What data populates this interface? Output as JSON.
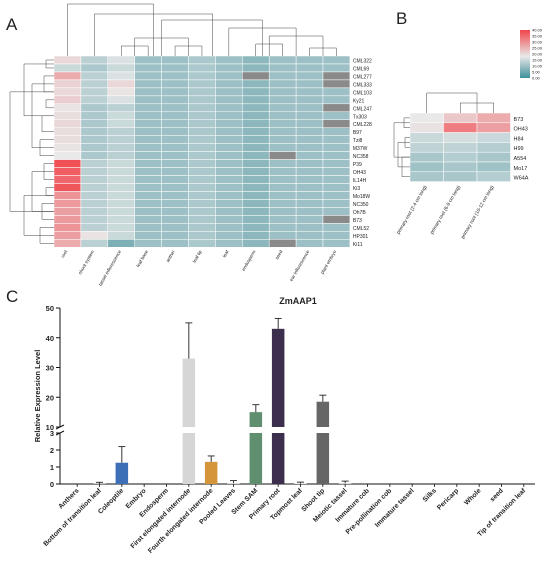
{
  "panels": {
    "a": "A",
    "b": "B",
    "c": "C"
  },
  "colors": {
    "heat_low": "#3f8f99",
    "heat_mid": "#e9e9e9",
    "heat_high": "#f0454b",
    "na": "#8a8a8a",
    "grid": "#ffffff",
    "bar_gray": "#d6d6d6",
    "bar_blue": "#3d6fb6",
    "bar_orange": "#d5953a",
    "bar_green": "#5f8f6e",
    "bar_dark": "#3b2f4d",
    "bar_mid": "#666666",
    "error": "#222222"
  },
  "chart_data": [
    {
      "type": "heatmap",
      "title": "",
      "columns": [
        "root",
        "shoot system",
        "tassel inflorescence",
        "leaf base",
        "anther",
        "leaf tip",
        "leaf",
        "endosperm",
        "seed",
        "ear inflorescence",
        "plant embryo"
      ],
      "rows": [
        "CML322",
        "CML69",
        "CML277",
        "CML333",
        "CML103",
        "Ky21",
        "CML247",
        "Tx303",
        "CML228",
        "B97",
        "Tzi8",
        "M37W",
        "NC358",
        "P39",
        "OH43",
        "IL14H",
        "Ki3",
        "Mo18W",
        "NC350",
        "Oh7B",
        "B73",
        "CML52",
        "HP301",
        "Ki11"
      ],
      "values": [
        [
          14,
          8,
          10,
          6,
          6,
          7,
          6,
          5,
          6,
          6,
          6
        ],
        [
          9,
          7,
          9,
          6,
          6,
          7,
          6,
          5,
          6,
          6,
          6
        ],
        [
          22,
          8,
          10,
          6,
          6,
          7,
          6,
          null,
          6,
          6,
          null
        ],
        [
          15,
          8,
          14,
          6,
          6,
          7,
          6,
          5,
          6,
          6,
          null
        ],
        [
          14,
          8,
          12,
          6,
          6,
          7,
          6,
          5,
          6,
          6,
          6
        ],
        [
          16,
          8,
          10,
          6,
          6,
          7,
          6,
          5,
          6,
          6,
          6
        ],
        [
          12,
          7,
          8,
          6,
          6,
          7,
          6,
          5,
          6,
          6,
          null
        ],
        [
          13,
          7,
          9,
          6,
          6,
          7,
          6,
          5,
          6,
          6,
          6
        ],
        [
          14,
          7,
          9,
          6,
          6,
          7,
          6,
          5,
          6,
          6,
          null
        ],
        [
          13,
          7,
          8,
          6,
          6,
          7,
          6,
          5,
          6,
          6,
          6
        ],
        [
          13,
          7,
          8,
          6,
          6,
          7,
          6,
          5,
          6,
          6,
          6
        ],
        [
          12,
          7,
          8,
          6,
          6,
          7,
          6,
          5,
          6,
          6,
          6
        ],
        [
          11,
          7,
          8,
          6,
          6,
          7,
          6,
          5,
          null,
          6,
          6
        ],
        [
          38,
          8,
          9,
          6,
          6,
          7,
          6,
          5,
          6,
          6,
          6
        ],
        [
          36,
          8,
          9,
          6,
          6,
          7,
          6,
          5,
          6,
          6,
          6
        ],
        [
          34,
          8,
          9,
          6,
          6,
          7,
          6,
          5,
          6,
          6,
          6
        ],
        [
          37,
          8,
          9,
          6,
          6,
          7,
          6,
          5,
          6,
          6,
          6
        ],
        [
          26,
          8,
          9,
          6,
          6,
          7,
          6,
          5,
          6,
          6,
          6
        ],
        [
          25,
          8,
          9,
          6,
          6,
          7,
          6,
          5,
          6,
          6,
          6
        ],
        [
          24,
          8,
          9,
          6,
          6,
          7,
          6,
          5,
          6,
          6,
          6
        ],
        [
          25,
          8,
          9,
          6,
          6,
          7,
          6,
          5,
          6,
          6,
          null
        ],
        [
          26,
          8,
          9,
          6,
          6,
          7,
          6,
          5,
          6,
          6,
          6
        ],
        [
          24,
          12,
          9,
          6,
          6,
          7,
          6,
          5,
          6,
          6,
          6
        ],
        [
          22,
          8,
          4,
          6,
          6,
          7,
          6,
          5,
          null,
          6,
          6
        ]
      ]
    },
    {
      "type": "heatmap",
      "title": "",
      "columns": [
        "primary root (2-4 cm long)",
        "primary root (6-8 cm long)",
        "primary root (10-12 cm long)"
      ],
      "rows": [
        "B73",
        "OH43",
        "H84",
        "H99",
        "A554",
        "Mo17",
        "W64A"
      ],
      "values": [
        [
          16,
          21,
          25
        ],
        [
          17,
          32,
          27
        ],
        [
          13,
          14,
          13
        ],
        [
          12,
          12,
          11
        ],
        [
          10,
          11,
          10
        ],
        [
          9,
          10,
          9
        ],
        [
          10,
          10,
          11
        ]
      ],
      "colorbar_ticks": [
        "40.00",
        "35.00",
        "30.00",
        "25.00",
        "20.00",
        "15.00",
        "10.00",
        "5.00",
        "0.00"
      ],
      "vmin": 0,
      "vmax": 40
    },
    {
      "type": "bar",
      "title": "ZmAAP1",
      "xlabel": "",
      "ylabel": "Relative Expression Level",
      "ylim": [
        0,
        50
      ],
      "axis_break": [
        3,
        10
      ],
      "y_ticks_upper": [
        "10",
        "20",
        "30",
        "40",
        "50"
      ],
      "y_ticks_lower": [
        "0",
        "1",
        "2",
        "3"
      ],
      "categories": [
        "Anthers",
        "Bottom of transition leaf",
        "Coleoptile",
        "Embryo",
        "Endosperm",
        "First elongated internode",
        "Fourth elongated internode",
        "Pooled Leaves",
        "Stem SAM",
        "Primary root",
        "Topmost leaf",
        "Shoot tip",
        "Meiotic tassel",
        "Immature cob",
        "Pre-pollination cob",
        "Immature tassel",
        "Silks",
        "Pericarp",
        "Whole",
        "seed",
        "Tip of transition leaf"
      ],
      "values": [
        0,
        0.02,
        1.25,
        0,
        0,
        33,
        1.3,
        0.05,
        15,
        43,
        0.03,
        18.5,
        0.05,
        0,
        0,
        0,
        0,
        0,
        0,
        0,
        0
      ],
      "errors": [
        0,
        0.08,
        0.95,
        0,
        0,
        12,
        0.35,
        0.15,
        2.5,
        3.5,
        0.08,
        2.2,
        0.12,
        0,
        0,
        0,
        0,
        0,
        0,
        0,
        0
      ],
      "bar_colors": [
        "gray",
        "gray",
        "blue",
        "gray",
        "gray",
        "gray",
        "orange",
        "gray",
        "green",
        "dark",
        "gray",
        "mid",
        "gray",
        "gray",
        "gray",
        "gray",
        "gray",
        "gray",
        "gray",
        "gray",
        "gray"
      ]
    }
  ]
}
